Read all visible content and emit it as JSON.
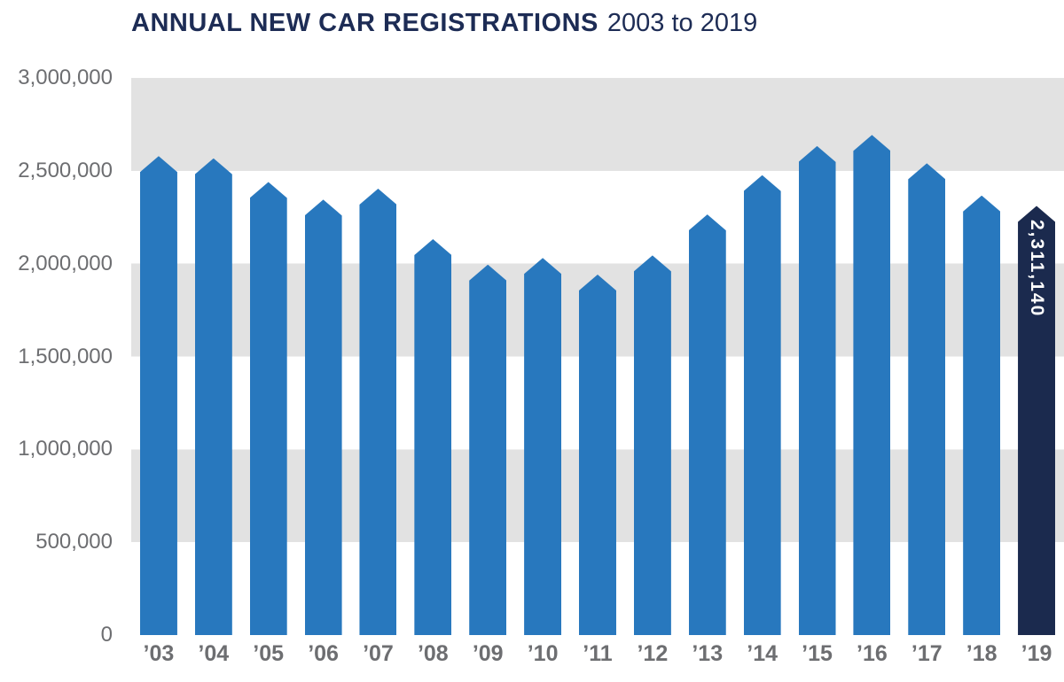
{
  "chart_data": {
    "type": "bar",
    "title": "ANNUAL NEW CAR REGISTRATIONS",
    "subtitle": "2003 to 2019",
    "categories": [
      "’03",
      "’04",
      "’05",
      "’06",
      "’07",
      "’08",
      "’09",
      "’10",
      "’11",
      "’12",
      "’13",
      "’14",
      "’15",
      "’16",
      "’17",
      "’18",
      "’19"
    ],
    "values": [
      2579050,
      2567269,
      2439717,
      2344864,
      2404007,
      2131795,
      1994999,
      2030846,
      1941253,
      2044609,
      2264737,
      2476435,
      2633503,
      2692786,
      2540617,
      2367147,
      2311140
    ],
    "final_value_label": "2,311,140",
    "xlabel": "",
    "ylabel": "",
    "ylim": [
      0,
      3000000
    ],
    "y_tick_labels": [
      "3,000,000",
      "2,500,000",
      "2,000,000",
      "1,500,000",
      "1,000,000",
      "500,000",
      "0"
    ],
    "y_tick_values": [
      3000000,
      2500000,
      2000000,
      1500000,
      1000000,
      500000,
      0
    ],
    "grid": "horizontal-stripes",
    "legend": "none",
    "colors": {
      "bar": "#2878BE",
      "final_bar": "#1B2A4E",
      "stripe": "#E2E2E2",
      "axis_text": "#6D6E71",
      "title": "#1D2C55"
    }
  }
}
